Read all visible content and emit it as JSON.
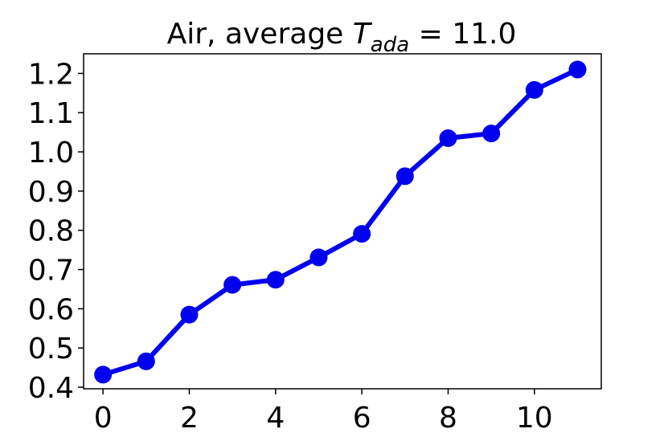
{
  "chart_data": {
    "type": "line",
    "title": {
      "prefix": "Air, average ",
      "symbol": "T",
      "subscript": "ada",
      "suffix": " = 11.0"
    },
    "xlabel": "",
    "ylabel": "",
    "x": [
      0,
      1,
      2,
      3,
      4,
      5,
      6,
      7,
      8,
      9,
      10,
      11
    ],
    "series": [
      {
        "values": [
          0.432,
          0.466,
          0.585,
          0.661,
          0.674,
          0.731,
          0.791,
          0.938,
          1.035,
          1.047,
          1.158,
          1.21
        ],
        "color": "#0000ee",
        "marker": "circle"
      }
    ],
    "xlim": [
      -0.45,
      11.55
    ],
    "ylim": [
      0.396,
      1.25
    ],
    "xticks": [
      0,
      2,
      4,
      6,
      8,
      10
    ],
    "xtick_labels": [
      "0",
      "2",
      "4",
      "6",
      "8",
      "10"
    ],
    "yticks": [
      0.4,
      0.5,
      0.6,
      0.7,
      0.8,
      0.9,
      1.0,
      1.1,
      1.2
    ],
    "ytick_labels": [
      "0.4",
      "0.5",
      "0.6",
      "0.7",
      "0.8",
      "0.9",
      "1.0",
      "1.1",
      "1.2"
    ],
    "grid": false,
    "legend": "none"
  }
}
